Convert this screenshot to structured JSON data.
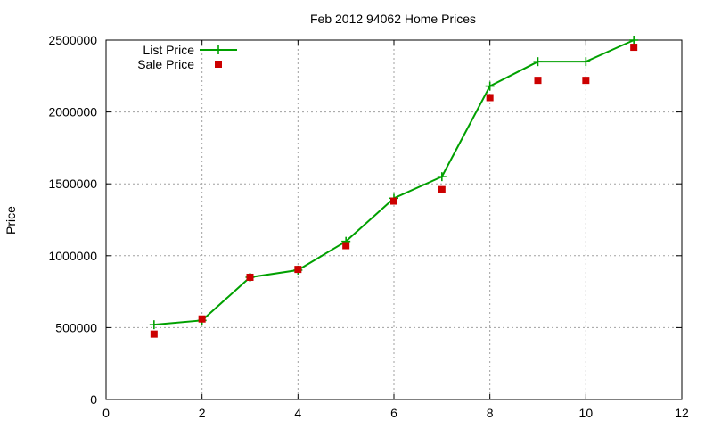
{
  "chart_data": {
    "type": "line",
    "title": "Feb 2012 94062 Home Prices",
    "xlabel": "",
    "ylabel": "Price",
    "xlim": [
      0,
      12
    ],
    "ylim": [
      0,
      2500000
    ],
    "xticks": [
      0,
      2,
      4,
      6,
      8,
      10,
      12
    ],
    "yticks": [
      0,
      500000,
      1000000,
      1500000,
      2000000,
      2500000
    ],
    "grid": true,
    "legend_position": "top-left",
    "series": [
      {
        "name": "List Price",
        "style": "line-with-plus-markers",
        "color": "#00a000",
        "x": [
          1,
          2,
          3,
          4,
          5,
          6,
          7,
          8,
          9,
          10,
          11
        ],
        "values": [
          520000,
          550000,
          850000,
          900000,
          1100000,
          1400000,
          1550000,
          2180000,
          2350000,
          2350000,
          2500000
        ]
      },
      {
        "name": "Sale Price",
        "style": "square-markers",
        "color": "#cc0000",
        "x": [
          1,
          2,
          3,
          4,
          5,
          6,
          7,
          8,
          9,
          10,
          11
        ],
        "values": [
          455000,
          560000,
          850000,
          905000,
          1070000,
          1380000,
          1460000,
          2100000,
          2220000,
          2220000,
          2450000
        ]
      }
    ]
  }
}
